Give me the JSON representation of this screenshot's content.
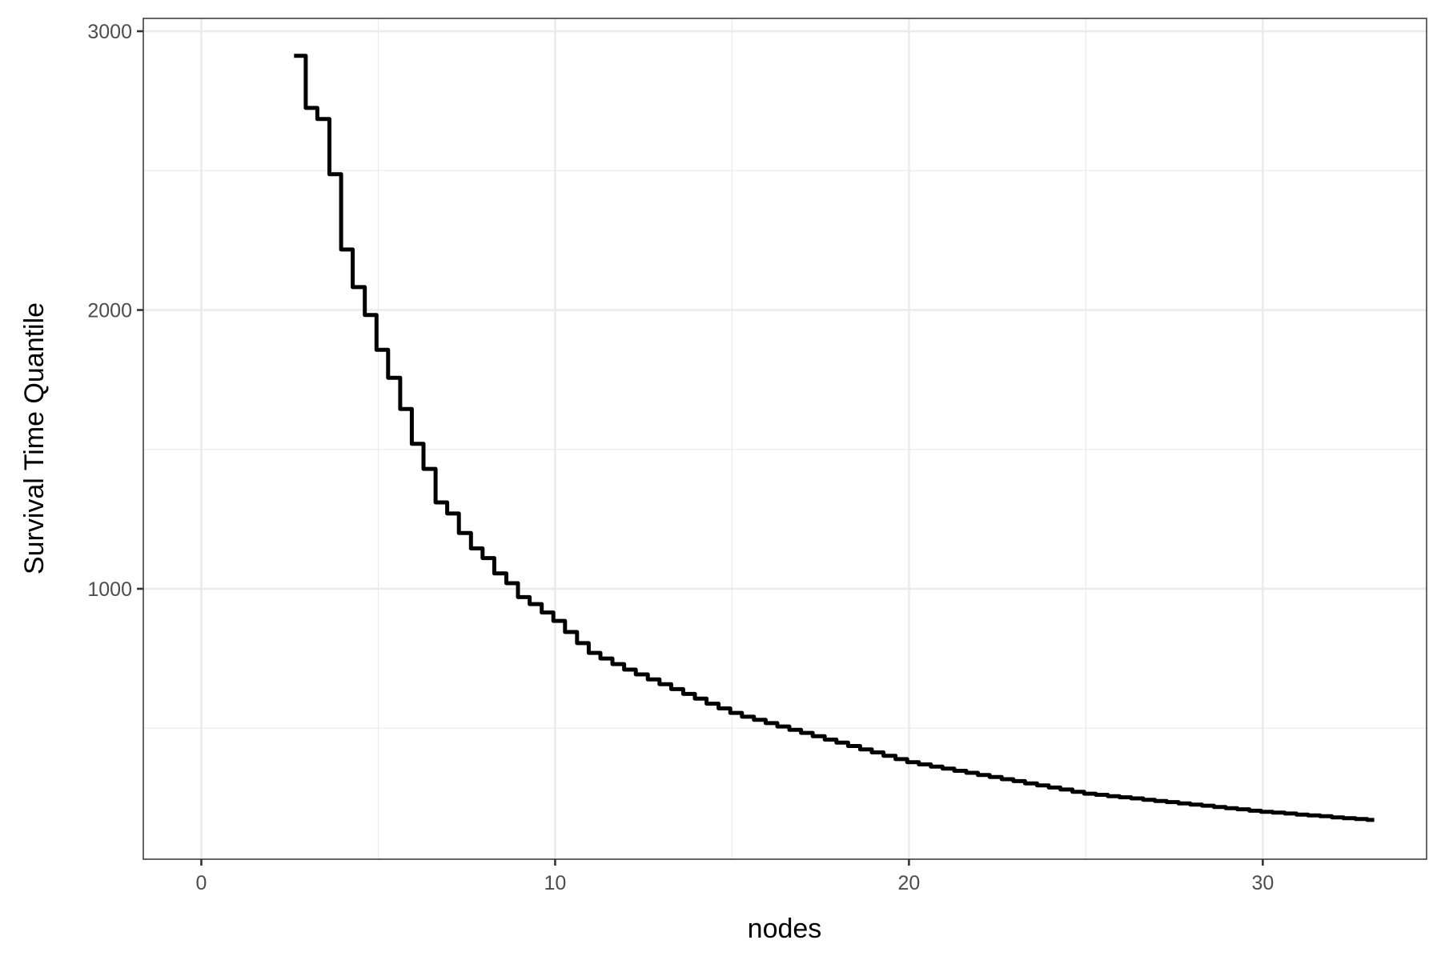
{
  "chart_data": {
    "type": "line",
    "style": "step",
    "title": "",
    "xlabel": "nodes",
    "ylabel": "Survival Time Quantile",
    "xlim": [
      -1.64,
      34.63
    ],
    "ylim": [
      30,
      3046
    ],
    "xticks": [
      0,
      10,
      20,
      30
    ],
    "xtick_labels": [
      "0",
      "10",
      "20",
      "30"
    ],
    "yticks": [
      1000,
      2000,
      3000
    ],
    "ytick_labels": [
      "1000",
      "2000",
      "3000"
    ],
    "grid": true,
    "line_color": "#000000",
    "x_end": 33.15,
    "x": [
      2.62,
      2.95,
      3.28,
      3.62,
      3.95,
      4.28,
      4.62,
      4.95,
      5.28,
      5.62,
      5.95,
      6.28,
      6.62,
      6.95,
      7.28,
      7.62,
      7.95,
      8.28,
      8.62,
      8.95,
      9.28,
      9.62,
      9.95,
      10.28,
      10.62,
      10.95,
      11.28,
      11.62,
      11.95,
      12.28,
      12.62,
      12.95,
      13.28,
      13.62,
      13.95,
      14.28,
      14.62,
      14.95,
      15.28,
      15.62,
      15.95,
      16.28,
      16.62,
      16.95,
      17.28,
      17.62,
      17.95,
      18.28,
      18.62,
      18.95,
      19.28,
      19.62,
      19.95,
      20.28,
      20.62,
      20.95,
      21.28,
      21.62,
      21.95,
      22.28,
      22.62,
      22.95,
      23.28,
      23.62,
      23.95,
      24.28,
      24.62,
      24.95,
      25.28,
      25.62,
      25.95,
      26.28,
      26.62,
      26.95,
      27.28,
      27.62,
      27.95,
      28.28,
      28.62,
      28.95,
      29.28,
      29.62,
      29.95,
      30.28,
      30.62,
      30.95,
      31.28,
      31.62,
      31.95,
      32.28,
      32.62,
      32.95
    ],
    "y": [
      2912,
      2725,
      2685,
      2487,
      2217,
      2082,
      1982,
      1857,
      1757,
      1645,
      1520,
      1430,
      1310,
      1270,
      1200,
      1145,
      1110,
      1055,
      1020,
      970,
      945,
      915,
      885,
      845,
      805,
      770,
      750,
      730,
      710,
      693,
      675,
      658,
      640,
      623,
      606,
      588,
      571,
      555,
      541,
      530,
      518,
      506,
      494,
      483,
      471,
      459,
      448,
      436,
      424,
      413,
      401,
      389,
      378,
      370,
      362,
      355,
      347,
      340,
      332,
      325,
      317,
      310,
      302,
      295,
      287,
      280,
      272,
      265,
      261,
      256,
      252,
      248,
      243,
      239,
      235,
      230,
      226,
      222,
      217,
      213,
      209,
      204,
      200,
      197,
      194,
      190,
      187,
      184,
      180,
      177,
      174,
      171
    ]
  }
}
